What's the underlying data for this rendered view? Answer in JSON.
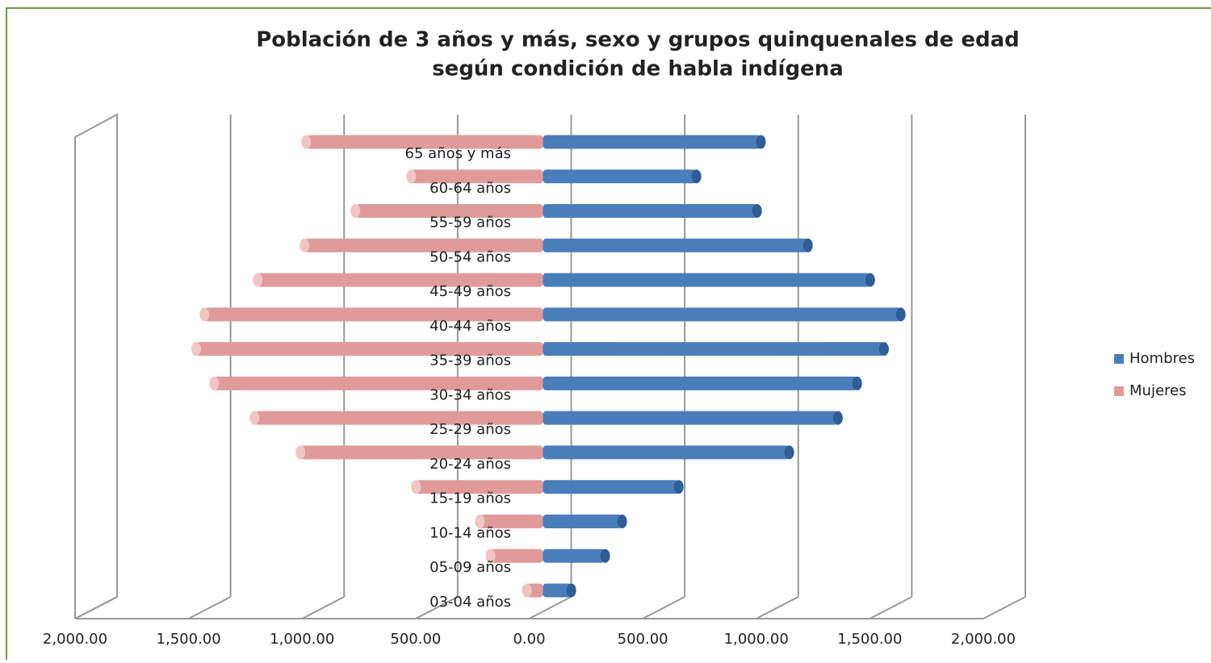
{
  "chart_data": {
    "type": "bar",
    "orientation": "horizontal",
    "stacked": true,
    "title": [
      "Población de 3 años y más, sexo y grupos quinquenales de edad",
      "según condición de habla indígena"
    ],
    "categories": [
      "65 años y más",
      "60-64 años",
      "55-59 años",
      "50-54 años",
      "45-49 años",
      "40-44 años",
      "35-39 años",
      "30-34 años",
      "25-29 años",
      "20-24 años",
      "15-19 años",
      "10-14 años",
      "05-09 años",
      "03-04 años"
    ],
    "series": [
      {
        "name": "Hombres",
        "color": "#4a7ebb",
        "values": [
          960,
          676,
          943,
          1167,
          1441,
          1576,
          1502,
          1384,
          1299,
          1085,
          598,
          349,
          274,
          125
        ]
      },
      {
        "name": "Mujeres",
        "color": "#e09a9a",
        "values": [
          -1043,
          -580,
          -826,
          -1050,
          -1256,
          -1491,
          -1527,
          -1448,
          -1270,
          -1068,
          -559,
          -278,
          -231,
          -71
        ]
      }
    ],
    "xlim": [
      -2000,
      2000
    ],
    "xticks": [
      {
        "value": -2000,
        "label": "2,000.00"
      },
      {
        "value": -1500,
        "label": "1,500.00"
      },
      {
        "value": -1000,
        "label": "1,000.00"
      },
      {
        "value": -500,
        "label": "500.00"
      },
      {
        "value": 0,
        "label": "0.00"
      },
      {
        "value": 500,
        "label": "500.00"
      },
      {
        "value": 1000,
        "label": "1,000.00"
      },
      {
        "value": 1500,
        "label": "1,500.00"
      },
      {
        "value": 2000,
        "label": "2,000.00"
      }
    ],
    "grid": true,
    "legend": "right"
  }
}
